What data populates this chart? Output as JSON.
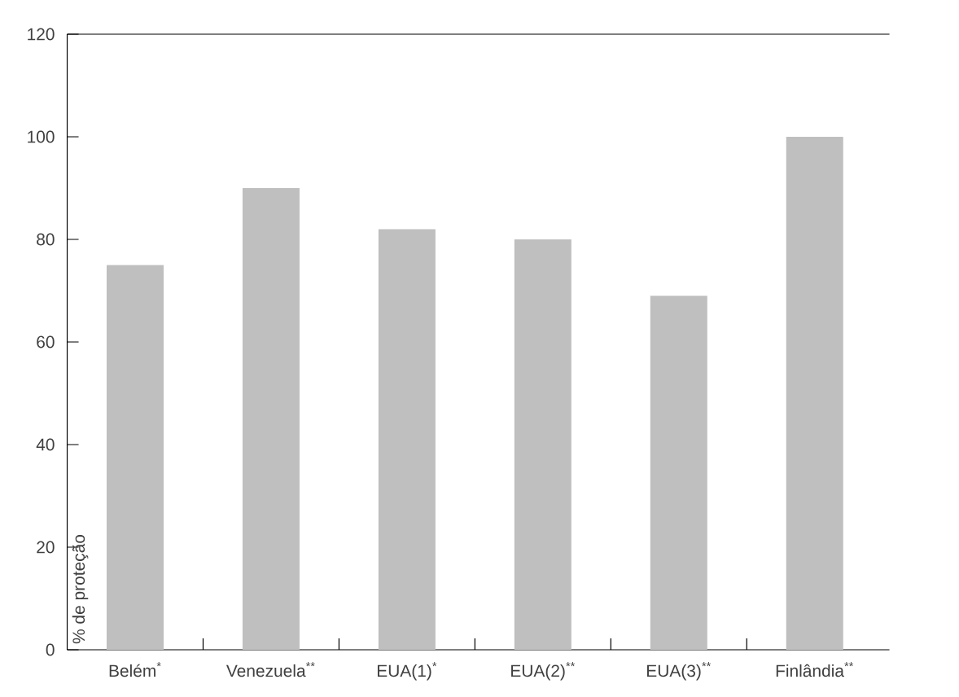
{
  "chart_data": {
    "type": "bar",
    "ylabel": "% de proteção",
    "categories": [
      "Belém$^{*}$",
      "Venezuela$^{**}$",
      "EUA(1)$^{*}$",
      "EUA(2)$^{**}$",
      "EUA(3)$^{**}$",
      "Finlândia$^{**}$"
    ],
    "values": [
      75,
      90,
      82,
      80,
      69,
      100
    ],
    "color": "#bfbfbf",
    "ylim": [
      0,
      120
    ],
    "yticks": [
      0,
      20,
      40,
      60,
      80,
      100,
      120
    ]
  }
}
